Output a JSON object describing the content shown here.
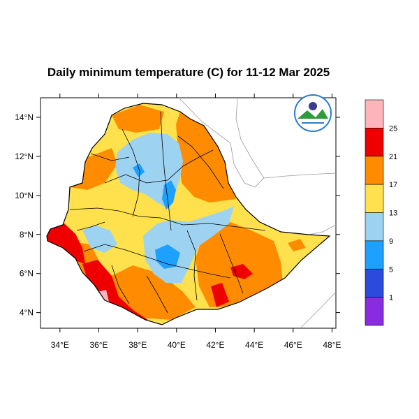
{
  "title": "Daily minimum temperature (C) for 11-12 Mar 2025",
  "map": {
    "lon_range": [
      33,
      48.2
    ],
    "lat_range": [
      3.2,
      15
    ],
    "x_ticks": [
      "34°E",
      "36°E",
      "38°E",
      "40°E",
      "42°E",
      "44°E",
      "46°E",
      "48°E"
    ],
    "x_tick_values": [
      34,
      36,
      38,
      40,
      42,
      44,
      46,
      48
    ],
    "y_ticks": [
      "14°N",
      "12°N",
      "10°N",
      "8°N",
      "6°N",
      "4°N"
    ],
    "y_tick_values": [
      14,
      12,
      10,
      8,
      6,
      4
    ]
  },
  "colorbar": {
    "labels": [
      "25",
      "21",
      "17",
      "13",
      "9",
      "5",
      "1"
    ],
    "colors_top_to_bottom": [
      "#ffb3ba",
      "#ee0000",
      "#ff8c00",
      "#ffe14d",
      "#9dd3f0",
      "#1ea0ff",
      "#2c4bdc",
      "#8a2be2"
    ]
  },
  "logo": {
    "name": "ethiopian-meteorology-institute-logo"
  }
}
